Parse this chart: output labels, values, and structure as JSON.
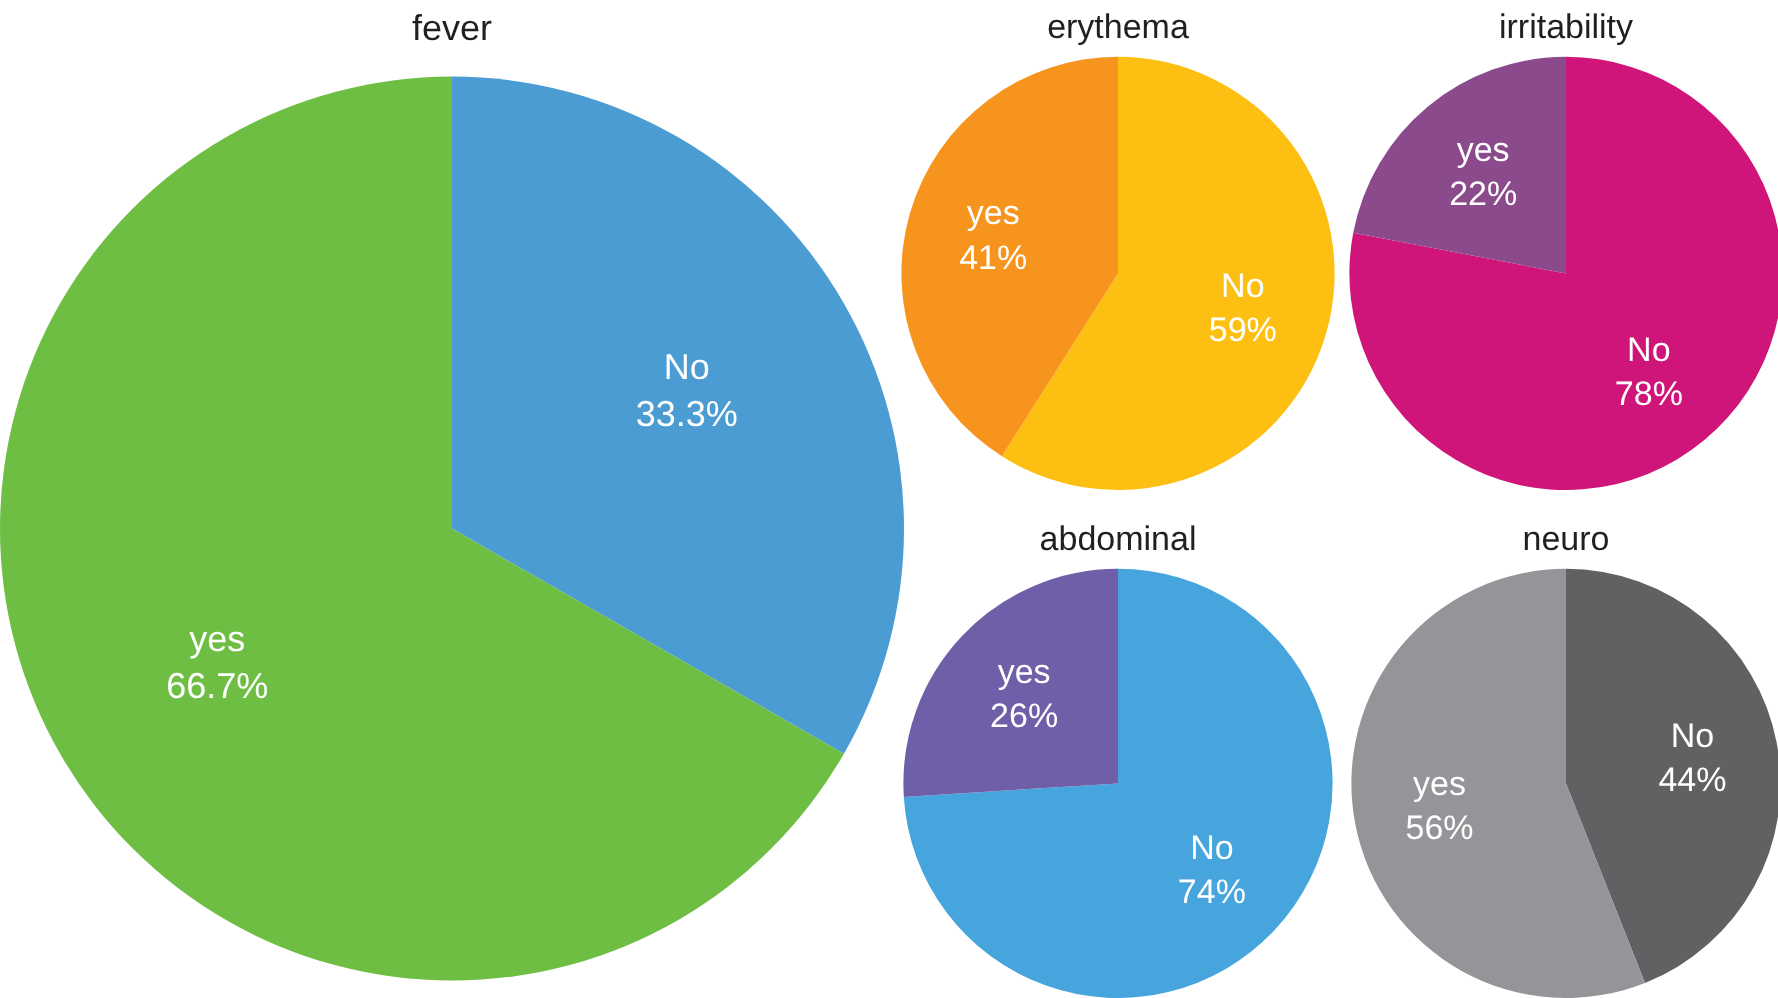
{
  "chart_data": [
    {
      "type": "pie",
      "title": "fever",
      "categories": [
        "No",
        "yes"
      ],
      "values": [
        33.3,
        66.7
      ],
      "value_labels": [
        "33.3%",
        "66.7%"
      ],
      "colors": [
        "#4b9cd3",
        "#6fbe44"
      ],
      "legend": false
    },
    {
      "type": "pie",
      "title": "erythema",
      "categories": [
        "No",
        "yes"
      ],
      "values": [
        59,
        41
      ],
      "value_labels": [
        "59%",
        "41%"
      ],
      "colors": [
        "#fdc012",
        "#f7941d"
      ],
      "legend": false
    },
    {
      "type": "pie",
      "title": "irritability",
      "categories": [
        "No",
        "yes"
      ],
      "values": [
        78,
        22
      ],
      "value_labels": [
        "78%",
        "22%"
      ],
      "colors": [
        "#d0157a",
        "#8b4a8c"
      ],
      "legend": false
    },
    {
      "type": "pie",
      "title": "abdominal",
      "categories": [
        "No",
        "yes"
      ],
      "values": [
        74,
        26
      ],
      "value_labels": [
        "74%",
        "26%"
      ],
      "colors": [
        "#45a5dc",
        "#6e5fa8"
      ],
      "legend": false
    },
    {
      "type": "pie",
      "title": "neuro",
      "categories": [
        "No",
        "yes"
      ],
      "values": [
        44,
        56
      ],
      "value_labels": [
        "44%",
        "56%"
      ],
      "colors": [
        "#616163",
        "#939598"
      ],
      "legend": false
    }
  ]
}
